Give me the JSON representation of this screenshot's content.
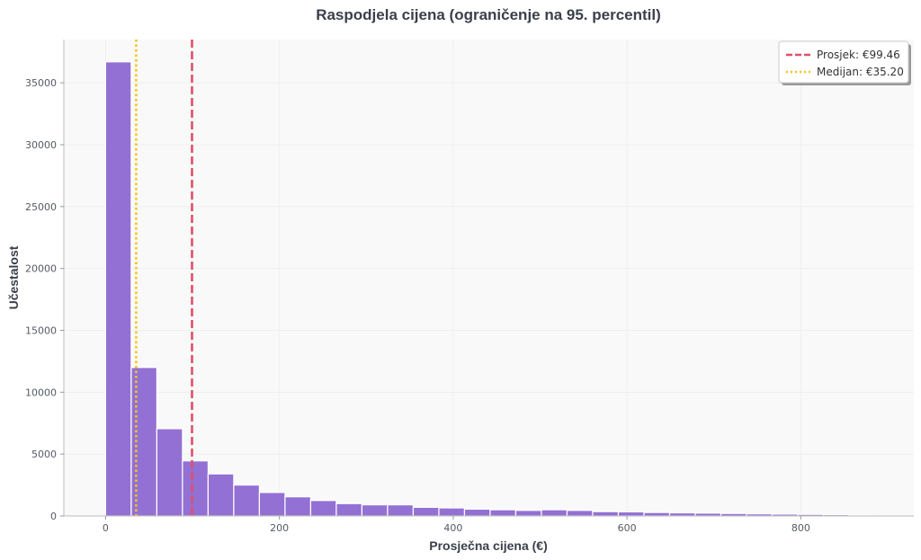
{
  "chart_data": {
    "type": "bar",
    "title": "Raspodjela cijena (ograničenje na 95. percentil)",
    "xlabel": "Prosječna cijena (€)",
    "ylabel": "Učestalost",
    "bin_width": 29.5,
    "bins_start": 0,
    "values": [
      36700,
      12000,
      7050,
      4450,
      3400,
      2500,
      1900,
      1550,
      1250,
      1000,
      900,
      900,
      700,
      650,
      550,
      500,
      450,
      500,
      450,
      350,
      330,
      280,
      250,
      230,
      200,
      170,
      150,
      130,
      110,
      90
    ],
    "bar_color": "#9370d4",
    "xlim": [
      -48,
      930
    ],
    "ylim": [
      0,
      38500
    ],
    "x_ticks": [
      0,
      200,
      400,
      600,
      800
    ],
    "y_ticks": [
      0,
      5000,
      10000,
      15000,
      20000,
      25000,
      30000,
      35000
    ],
    "grid": true,
    "lines": [
      {
        "name": "Prosjek: €99.46",
        "x": 99.46,
        "color": "#e05068",
        "style": "dashed"
      },
      {
        "name": "Medijan: €35.20",
        "x": 35.2,
        "color": "#f5c518",
        "style": "dotted"
      }
    ],
    "legend_position": "top-right"
  }
}
